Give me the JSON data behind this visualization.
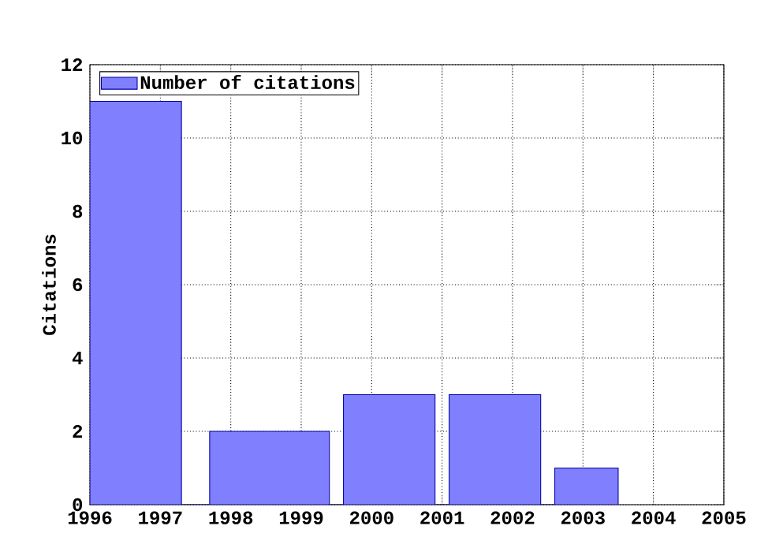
{
  "chart_data": {
    "type": "histogram",
    "ylabel": "Citations",
    "bins": [
      1996,
      1997.3,
      1997.7,
      1999.4,
      1999.6,
      2000.9,
      2001.1,
      2002.4,
      2002.6,
      2003.5
    ],
    "series": [
      {
        "name": "Number of citations",
        "color": "#8080ff",
        "values": [
          11,
          0,
          2,
          0,
          3,
          0,
          3,
          0,
          1
        ]
      }
    ],
    "xlim": [
      1996,
      2005
    ],
    "xticks": [
      1996,
      1997,
      1998,
      1999,
      2000,
      2001,
      2002,
      2003,
      2004,
      2005
    ],
    "ylim": [
      0,
      12
    ],
    "yticks": [
      0,
      2,
      4,
      6,
      8,
      10,
      12
    ],
    "grid": true,
    "legend": "top left"
  }
}
